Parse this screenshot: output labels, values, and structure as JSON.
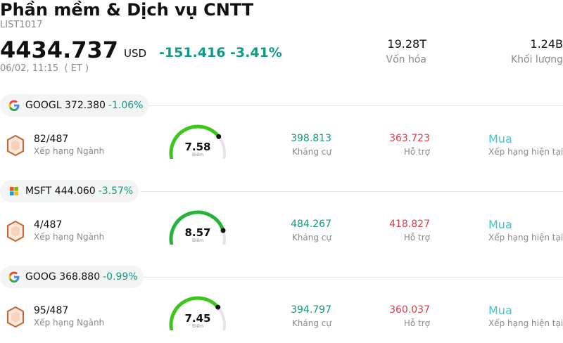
{
  "header": {
    "title": "Phần mềm & Dịch vụ CNTT",
    "code": "LIST1017",
    "price": "4434.737",
    "currency": "USD",
    "change": "-151.416 -3.41%",
    "timestamp": "06/02, 11:15  ( ET )",
    "market_cap_value": "19.28T",
    "market_cap_label": "Vốn hóa",
    "volume_value": "1.24B",
    "volume_label": "Khối lượng"
  },
  "colors": {
    "positive": "#119a83",
    "negative": "#e03c4a",
    "recommendation": "#3fc7c4",
    "gauge_fill": "#3cc51a",
    "gauge_track": "#e4e4e6"
  },
  "stocks": [
    {
      "logo": "google-logo-icon",
      "ticker": "GOOGL",
      "price": "372.380",
      "change_pct": "-1.06%",
      "rank": "82/487",
      "rank_label": "Xếp hạng Ngành",
      "score": "7.58",
      "score_label": "Điểm",
      "score_value": 7.58,
      "resistance": "398.813",
      "resistance_label": "Kháng cự",
      "support": "363.723",
      "support_label": "Hỗ trợ",
      "recommendation": "Mua",
      "recommendation_label": "Xếp hạng hiện tại"
    },
    {
      "logo": "microsoft-logo-icon",
      "ticker": "MSFT",
      "price": "444.060",
      "change_pct": "-3.57%",
      "rank": "4/487",
      "rank_label": "Xếp hạng Ngành",
      "score": "8.57",
      "score_label": "Điểm",
      "score_value": 8.57,
      "resistance": "484.267",
      "resistance_label": "Kháng cự",
      "support": "418.827",
      "support_label": "Hỗ trợ",
      "recommendation": "Mua",
      "recommendation_label": "Xếp hạng hiện tại"
    },
    {
      "logo": "google-logo-icon",
      "ticker": "GOOG",
      "price": "368.880",
      "change_pct": "-0.99%",
      "rank": "95/487",
      "rank_label": "Xếp hạng Ngành",
      "score": "7.45",
      "score_label": "Điểm",
      "score_value": 7.45,
      "resistance": "394.797",
      "resistance_label": "Kháng cự",
      "support": "360.037",
      "support_label": "Hỗ trợ",
      "recommendation": "Mua",
      "recommendation_label": "Xếp hạng hiện tại"
    }
  ]
}
